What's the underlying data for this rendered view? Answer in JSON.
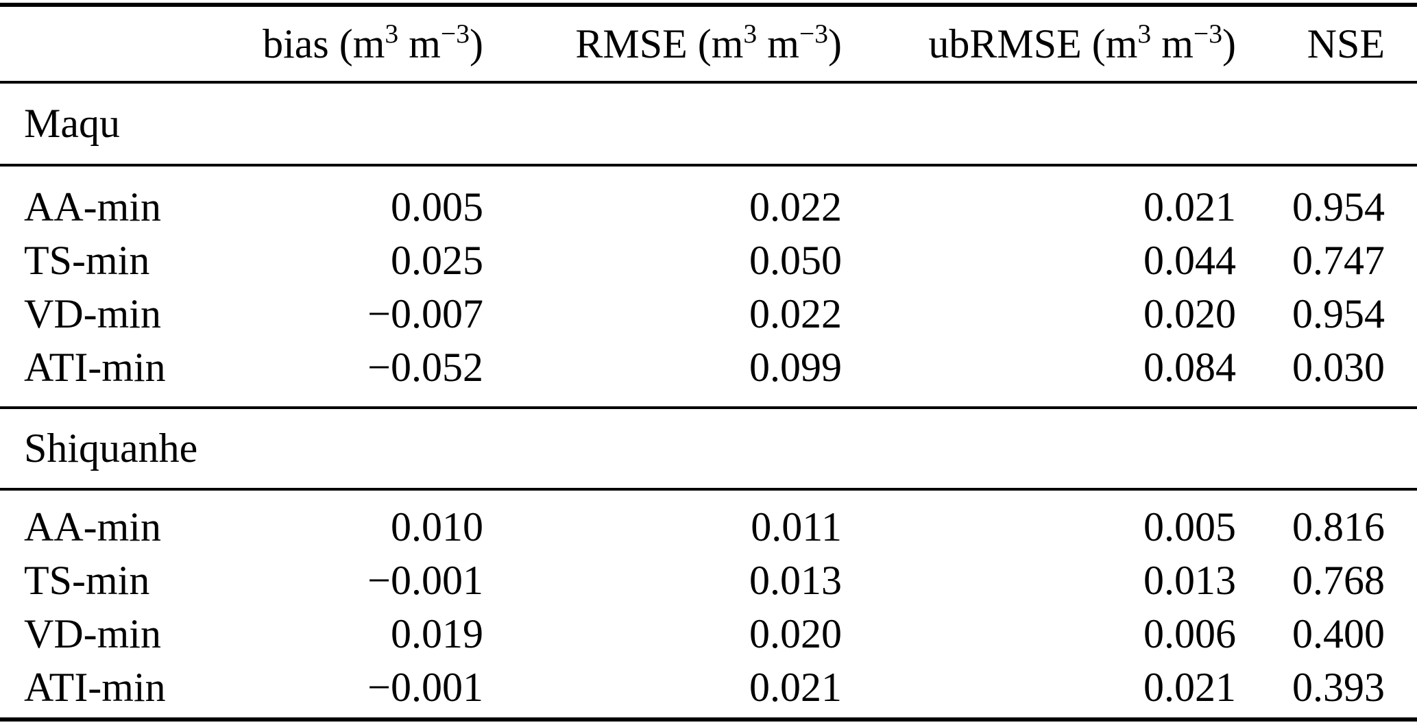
{
  "table": {
    "columns": [
      {
        "id": "row_label",
        "name": "row-label",
        "header_parts": []
      },
      {
        "id": "bias",
        "name": "bias",
        "header_parts": [
          {
            "t": "bias (m"
          },
          {
            "t": "3",
            "sup": true
          },
          {
            "t": " m"
          },
          {
            "t": "−3",
            "sup": true
          },
          {
            "t": ")"
          }
        ]
      },
      {
        "id": "rmse",
        "name": "rmse",
        "header_parts": [
          {
            "t": "RMSE (m"
          },
          {
            "t": "3",
            "sup": true
          },
          {
            "t": " m"
          },
          {
            "t": "−3",
            "sup": true
          },
          {
            "t": ")"
          }
        ]
      },
      {
        "id": "ubrmse",
        "name": "ubrmse",
        "header_parts": [
          {
            "t": "ubRMSE (m"
          },
          {
            "t": "3",
            "sup": true
          },
          {
            "t": " m"
          },
          {
            "t": "−3",
            "sup": true
          },
          {
            "t": ")"
          }
        ]
      },
      {
        "id": "nse",
        "name": "nse",
        "header_parts": [
          {
            "t": "NSE"
          }
        ]
      }
    ],
    "sections": [
      {
        "title": "Maqu",
        "rows": [
          {
            "row_label": "AA-min",
            "bias": "0.005",
            "rmse": "0.022",
            "ubrmse": "0.021",
            "nse": "0.954"
          },
          {
            "row_label": "TS-min",
            "bias": "0.025",
            "rmse": "0.050",
            "ubrmse": "0.044",
            "nse": "0.747"
          },
          {
            "row_label": "VD-min",
            "bias": "−0.007",
            "rmse": "0.022",
            "ubrmse": "0.020",
            "nse": "0.954"
          },
          {
            "row_label": "ATI-min",
            "bias": "−0.052",
            "rmse": "0.099",
            "ubrmse": "0.084",
            "nse": "0.030"
          }
        ]
      },
      {
        "title": "Shiquanhe",
        "rows": [
          {
            "row_label": "AA-min",
            "bias": "0.010",
            "rmse": "0.011",
            "ubrmse": "0.005",
            "nse": "0.816"
          },
          {
            "row_label": "TS-min",
            "bias": "−0.001",
            "rmse": "0.013",
            "ubrmse": "0.013",
            "nse": "0.768"
          },
          {
            "row_label": "VD-min",
            "bias": "0.019",
            "rmse": "0.020",
            "ubrmse": "0.006",
            "nse": "0.400"
          },
          {
            "row_label": "ATI-min",
            "bias": "−0.001",
            "rmse": "0.021",
            "ubrmse": "0.021",
            "nse": "0.393"
          }
        ]
      }
    ],
    "colors": {
      "text": "#000000",
      "rule": "#000000",
      "background": "#ffffff"
    }
  }
}
